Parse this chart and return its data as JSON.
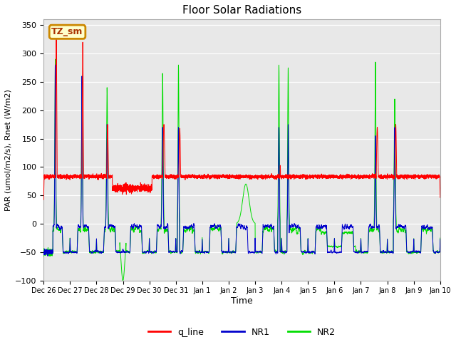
{
  "title": "Floor Solar Radiations",
  "xlabel": "Time",
  "ylabel": "PAR (umol/m2/s), Rnet (W/m2)",
  "ylim": [
    -100,
    360
  ],
  "bg_color": "#e8e8e8",
  "fig_color": "#ffffff",
  "annotation_text": "TZ_sm",
  "annotation_color": "#aa3300",
  "annotation_bg": "#ffffcc",
  "annotation_edge": "#cc8800",
  "legend_labels": [
    "q_line",
    "NR1",
    "NR2"
  ],
  "line_colors": [
    "#ff0000",
    "#0000cc",
    "#00dd00"
  ],
  "xtick_labels": [
    "Dec 26",
    "Dec 27",
    "Dec 28",
    "Dec 29",
    "Dec 30",
    "Dec 31",
    "Jan 1",
    "Jan 2",
    "Jan 3",
    "Jan 4",
    "Jan 5",
    "Jan 6",
    "Jan 7",
    "Jan 8",
    "Jan 9",
    "Jan 10"
  ],
  "ytick_values": [
    -100,
    -50,
    0,
    50,
    100,
    150,
    200,
    250,
    300,
    350
  ],
  "seed": 42
}
